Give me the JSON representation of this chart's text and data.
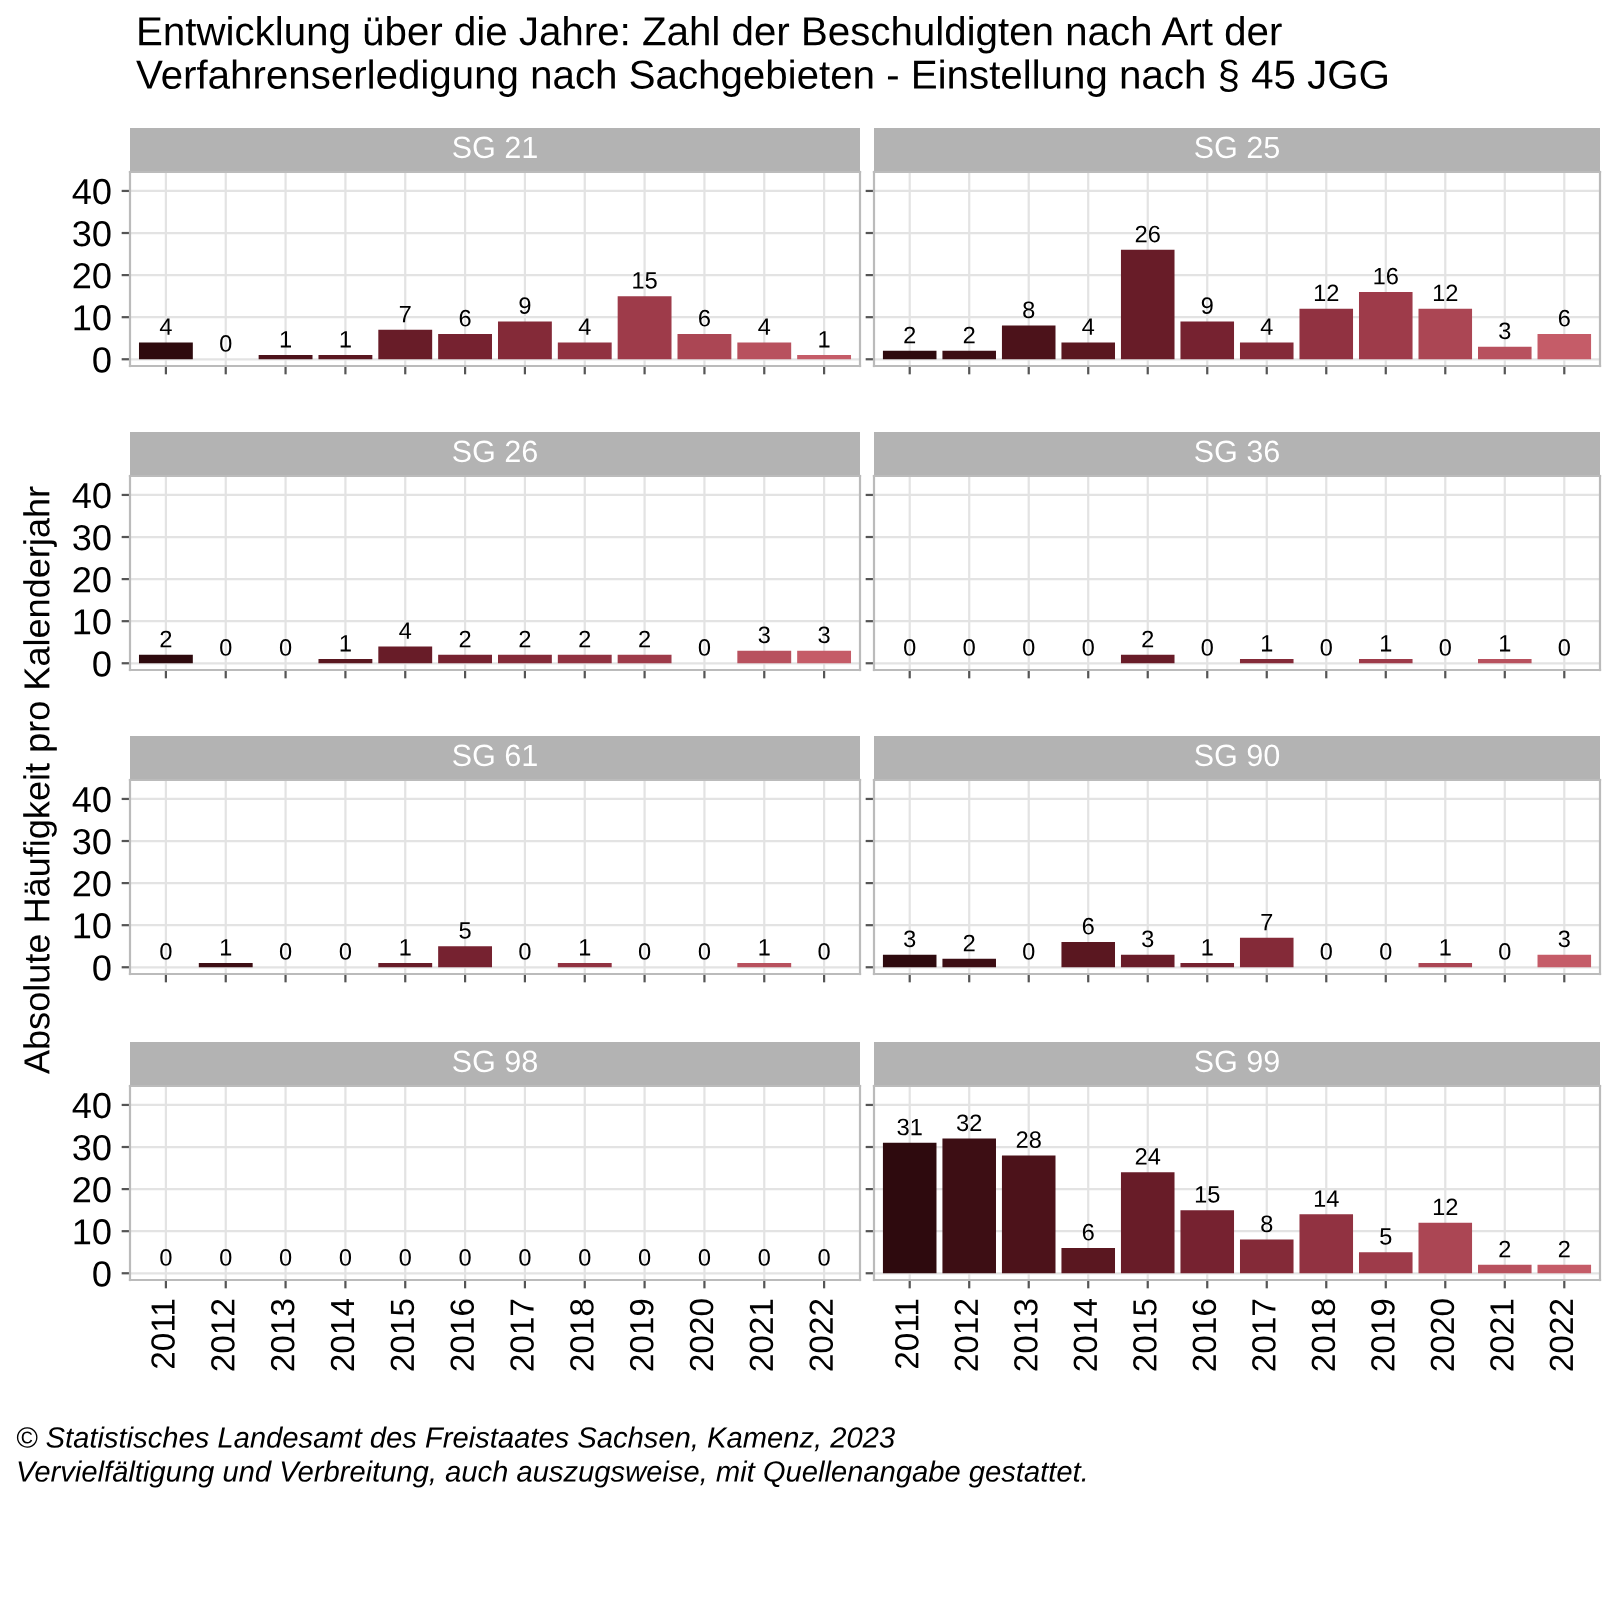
{
  "chart_data": [
    {
      "type": "bar",
      "title": "SG 21",
      "ylabel": "Absolute Häufigkeit pro Kalenderjahr",
      "annotations": [
        "Entwicklung über die Jahre: Zahl der Beschuldigten nach Art der Verfahrenserledigung nach Sachgebieten - Einstellung nach § 45 JGG",
        "© Statistisches Landesamt des Freistaates Sachsen, Kamenz, 2023",
        "Vervielfältigung und Verbreitung, auch auszugsweise, mit Quellenangabe gestattet."
      ],
      "categories": [
        "2011",
        "2012",
        "2013",
        "2014",
        "2015",
        "2016",
        "2017",
        "2018",
        "2019",
        "2020",
        "2021",
        "2022"
      ],
      "values": [
        4,
        0,
        1,
        1,
        7,
        6,
        9,
        4,
        15,
        6,
        4,
        1
      ],
      "colors": [
        "#2e0a0e",
        "#3d0e14",
        "#4c121a",
        "#5a1720",
        "#681c28",
        "#762230",
        "#842a38",
        "#913241",
        "#9e3b4a",
        "#ab4654",
        "#b8515e",
        "#c55c68"
      ],
      "ylim": [
        -1.6,
        44.5
      ],
      "yticks": [
        0,
        10,
        20,
        30,
        40
      ],
      "grid": true,
      "data_labels": true,
      "tick_labels": "y"
    },
    {
      "type": "bar",
      "title": "SG 25",
      "categories": [
        "2011",
        "2012",
        "2013",
        "2014",
        "2015",
        "2016",
        "2017",
        "2018",
        "2019",
        "2020",
        "2021",
        "2022"
      ],
      "values": [
        2,
        2,
        8,
        4,
        26,
        9,
        4,
        12,
        16,
        12,
        3,
        6
      ],
      "colors": [
        "#2e0a0e",
        "#3d0e14",
        "#4c121a",
        "#5a1720",
        "#681c28",
        "#762230",
        "#842a38",
        "#913241",
        "#9e3b4a",
        "#ab4654",
        "#b8515e",
        "#c55c68"
      ],
      "ylim": [
        -1.6,
        44.5
      ],
      "yticks": [
        0,
        10,
        20,
        30,
        40
      ],
      "grid": true,
      "data_labels": true,
      "tick_labels": false
    },
    {
      "type": "bar",
      "title": "SG 26",
      "categories": [
        "2011",
        "2012",
        "2013",
        "2014",
        "2015",
        "2016",
        "2017",
        "2018",
        "2019",
        "2020",
        "2021",
        "2022"
      ],
      "values": [
        2,
        0,
        0,
        1,
        4,
        2,
        2,
        2,
        2,
        0,
        3,
        3
      ],
      "colors": [
        "#2e0a0e",
        "#3d0e14",
        "#4c121a",
        "#5a1720",
        "#681c28",
        "#762230",
        "#842a38",
        "#913241",
        "#9e3b4a",
        "#ab4654",
        "#b8515e",
        "#c55c68"
      ],
      "ylim": [
        -1.6,
        44.5
      ],
      "yticks": [
        0,
        10,
        20,
        30,
        40
      ],
      "grid": true,
      "data_labels": true,
      "tick_labels": "y"
    },
    {
      "type": "bar",
      "title": "SG 36",
      "categories": [
        "2011",
        "2012",
        "2013",
        "2014",
        "2015",
        "2016",
        "2017",
        "2018",
        "2019",
        "2020",
        "2021",
        "2022"
      ],
      "values": [
        0,
        0,
        0,
        0,
        2,
        0,
        1,
        0,
        1,
        0,
        1,
        0
      ],
      "colors": [
        "#2e0a0e",
        "#3d0e14",
        "#4c121a",
        "#5a1720",
        "#681c28",
        "#762230",
        "#842a38",
        "#913241",
        "#9e3b4a",
        "#ab4654",
        "#b8515e",
        "#c55c68"
      ],
      "ylim": [
        -1.6,
        44.5
      ],
      "yticks": [
        0,
        10,
        20,
        30,
        40
      ],
      "grid": true,
      "data_labels": true,
      "tick_labels": false
    },
    {
      "type": "bar",
      "title": "SG 61",
      "categories": [
        "2011",
        "2012",
        "2013",
        "2014",
        "2015",
        "2016",
        "2017",
        "2018",
        "2019",
        "2020",
        "2021",
        "2022"
      ],
      "values": [
        0,
        1,
        0,
        0,
        1,
        5,
        0,
        1,
        0,
        0,
        1,
        0
      ],
      "colors": [
        "#2e0a0e",
        "#3d0e14",
        "#4c121a",
        "#5a1720",
        "#681c28",
        "#762230",
        "#842a38",
        "#913241",
        "#9e3b4a",
        "#ab4654",
        "#b8515e",
        "#c55c68"
      ],
      "ylim": [
        -1.6,
        44.5
      ],
      "yticks": [
        0,
        10,
        20,
        30,
        40
      ],
      "grid": true,
      "data_labels": true,
      "tick_labels": "y"
    },
    {
      "type": "bar",
      "title": "SG 90",
      "categories": [
        "2011",
        "2012",
        "2013",
        "2014",
        "2015",
        "2016",
        "2017",
        "2018",
        "2019",
        "2020",
        "2021",
        "2022"
      ],
      "values": [
        3,
        2,
        0,
        6,
        3,
        1,
        7,
        0,
        0,
        1,
        0,
        3
      ],
      "colors": [
        "#2e0a0e",
        "#3d0e14",
        "#4c121a",
        "#5a1720",
        "#681c28",
        "#762230",
        "#842a38",
        "#913241",
        "#9e3b4a",
        "#ab4654",
        "#b8515e",
        "#c55c68"
      ],
      "ylim": [
        -1.6,
        44.5
      ],
      "yticks": [
        0,
        10,
        20,
        30,
        40
      ],
      "grid": true,
      "data_labels": true,
      "tick_labels": false
    },
    {
      "type": "bar",
      "title": "SG 98",
      "categories": [
        "2011",
        "2012",
        "2013",
        "2014",
        "2015",
        "2016",
        "2017",
        "2018",
        "2019",
        "2020",
        "2021",
        "2022"
      ],
      "values": [
        0,
        0,
        0,
        0,
        0,
        0,
        0,
        0,
        0,
        0,
        0,
        0
      ],
      "colors": [
        "#2e0a0e",
        "#3d0e14",
        "#4c121a",
        "#5a1720",
        "#681c28",
        "#762230",
        "#842a38",
        "#913241",
        "#9e3b4a",
        "#ab4654",
        "#b8515e",
        "#c55c68"
      ],
      "ylim": [
        -1.6,
        44.5
      ],
      "yticks": [
        0,
        10,
        20,
        30,
        40
      ],
      "grid": true,
      "data_labels": true
    },
    {
      "type": "bar",
      "title": "SG 99",
      "categories": [
        "2011",
        "2012",
        "2013",
        "2014",
        "2015",
        "2016",
        "2017",
        "2018",
        "2019",
        "2020",
        "2021",
        "2022"
      ],
      "values": [
        31,
        32,
        28,
        6,
        24,
        15,
        8,
        14,
        5,
        12,
        2,
        2
      ],
      "colors": [
        "#2e0a0e",
        "#3d0e14",
        "#4c121a",
        "#5a1720",
        "#681c28",
        "#762230",
        "#842a38",
        "#913241",
        "#9e3b4a",
        "#ab4654",
        "#b8515e",
        "#c55c68"
      ],
      "ylim": [
        -1.6,
        44.5
      ],
      "yticks": [
        0,
        10,
        20,
        30,
        40
      ],
      "grid": true,
      "data_labels": true,
      "tick_labels": "x"
    }
  ]
}
